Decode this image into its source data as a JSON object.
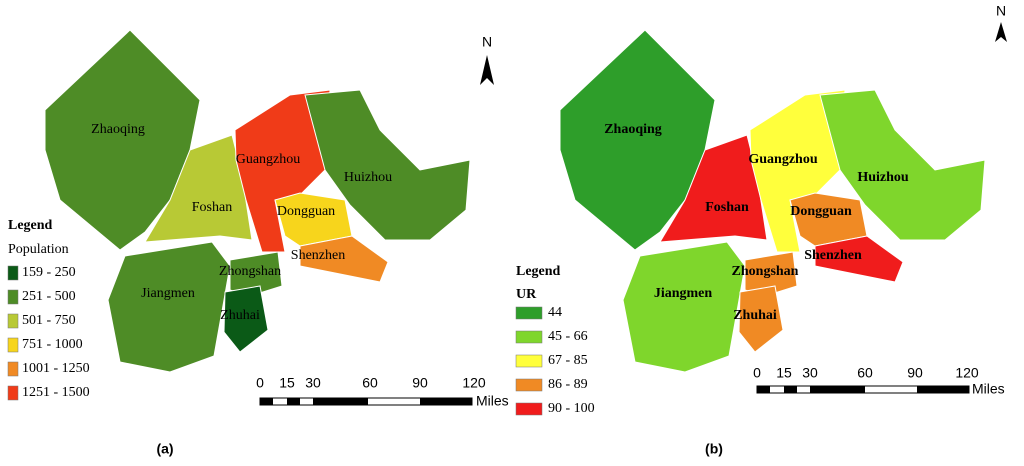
{
  "panels": [
    {
      "label": "(a)",
      "north": "N",
      "legend": {
        "title": "Legend",
        "subtitle": "Population",
        "items": [
          {
            "label": "159 - 250",
            "color": "#0b5a17"
          },
          {
            "label": "251 - 500",
            "color": "#4e8c26"
          },
          {
            "label": "501 - 750",
            "color": "#b8c935"
          },
          {
            "label": "751 - 1000",
            "color": "#f7d51c"
          },
          {
            "label": "1001 - 1250",
            "color": "#f08a24"
          },
          {
            "label": "1251 - 1500",
            "color": "#f03b18"
          }
        ]
      },
      "regions": [
        {
          "name": "Zhaoqing",
          "color": "#4e8c26"
        },
        {
          "name": "Foshan",
          "color": "#b8c935"
        },
        {
          "name": "Guangzhou",
          "color": "#f03b18"
        },
        {
          "name": "Huizhou",
          "color": "#4e8c26"
        },
        {
          "name": "Dongguan",
          "color": "#f7d51c"
        },
        {
          "name": "Shenzhen",
          "color": "#f08a24"
        },
        {
          "name": "Jiangmen",
          "color": "#4e8c26"
        },
        {
          "name": "Zhongshan",
          "color": "#4e8c26"
        },
        {
          "name": "Zhuhai",
          "color": "#0b5a17"
        }
      ],
      "scale": {
        "ticks": [
          "0",
          "15",
          "30",
          "60",
          "90",
          "120"
        ],
        "unit": "Miles"
      }
    },
    {
      "label": "(b)",
      "north": "N",
      "legend": {
        "title": "Legend",
        "subtitle": "UR",
        "items": [
          {
            "label": "44",
            "color": "#2e9e2a"
          },
          {
            "label": "45 - 66",
            "color": "#7fd62c"
          },
          {
            "label": "67 - 85",
            "color": "#ffff3c"
          },
          {
            "label": "86 - 89",
            "color": "#f08a24"
          },
          {
            "label": "90 - 100",
            "color": "#f01c1c"
          }
        ]
      },
      "regions": [
        {
          "name": "Zhaoqing",
          "color": "#2e9e2a"
        },
        {
          "name": "Foshan",
          "color": "#f01c1c"
        },
        {
          "name": "Guangzhou",
          "color": "#ffff3c"
        },
        {
          "name": "Huizhou",
          "color": "#7fd62c"
        },
        {
          "name": "Dongguan",
          "color": "#f08a24"
        },
        {
          "name": "Shenzhen",
          "color": "#f01c1c"
        },
        {
          "name": "Jiangmen",
          "color": "#7fd62c"
        },
        {
          "name": "Zhongshan",
          "color": "#f08a24"
        },
        {
          "name": "Zhuhai",
          "color": "#f08a24"
        }
      ],
      "scale": {
        "ticks": [
          "0",
          "15",
          "30",
          "60",
          "90",
          "120"
        ],
        "unit": "Miles"
      }
    }
  ]
}
